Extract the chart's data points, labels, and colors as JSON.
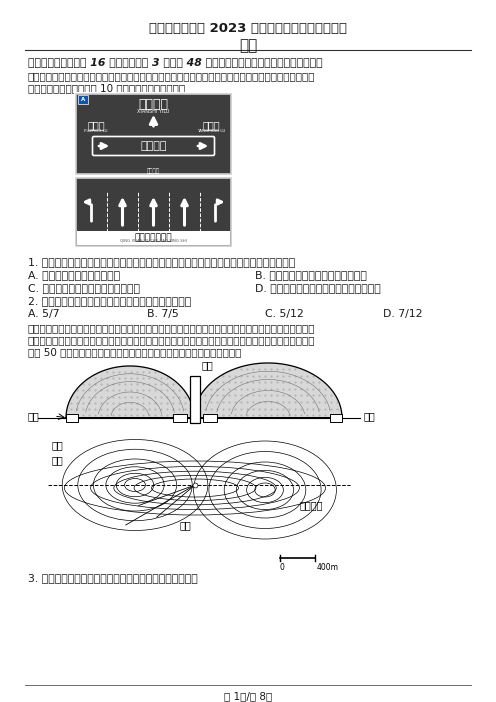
{
  "title1": "河北省衡水中学 2023 届上学期高三年级一调考试",
  "title2": "地理",
  "section1_header": "一、选择题：本题共 16 小题，每小题 3 分，共 48 分。每小题只有一个选项符合题目要求。",
  "para1": "　　家住某市的中学生小明周末想去当地新华书店看书，他在骑行去新华书店的途中，看到如下交通指示",
  "para2": "牌（下图），此时大约为 10 时。据此完成下面小题。",
  "q1": "1. 书店位于贤士一路与阳明路路口处，小明想走贤士一路，当前他的行进路线应为（　　）",
  "q1a": "A. 走贤士二路向西至贤士一路",
  "q1b": "B. 走贤士二路向北后沿贤士一路向西",
  "q1c": "C. 过贤士二路向西至贤士一路后向南",
  "q1d": "D. 过贤士二路继续向前至贤士一路后向北",
  "q2": "2. 此刻全球旧的一天与新的一天的范围比约为（　　）",
  "q2a": "A. 5/7",
  "q2b": "B. 7/5",
  "q2c": "C. 5/12",
  "q2d": "D. 7/12",
  "para3": "　　桥梁、隧道是山区高速公路建设的常见形式。在较长隧道（数十米）施工时，为提高工程效率，人们",
  "para4": "会开挖竖井、斜井等进行辅助。如图为我国西南地区某山区沿隧道施工示意图及该山区等高线示意图（等",
  "para5": "高距 50 米）。该地岩层以石灰岩为主，多褶皱发育。据此完成下面小题。",
  "q3": "3. 该工程施工中，开挖竖井和斜井的主要作用是（　　）",
  "footer": "第 1页/共 8页",
  "sign1_line1": "贤士一路",
  "sign1_pinyin1": "XIANSHI YILU",
  "sign1_left": "福州路",
  "sign1_left_py": "FUZHOU LU",
  "sign1_right": "阳明路",
  "sign1_right_py": "YANGMING LU",
  "sign1_mid": "贤士二路",
  "sign1_bottom_py": "请走右侧",
  "sign2_bottom": "请选择车道行驶",
  "sign2_bottom_py": "QING XUAN ZE CHE DAO XING SHI",
  "label_jingzao": "竖井",
  "label_xiejing": "斜井",
  "label_dongkou": "洞口",
  "label_suidao": "隧道线路",
  "bg_color": "#ffffff",
  "text_color": "#1a1a1a",
  "sign_bg": "#3d3d3d"
}
